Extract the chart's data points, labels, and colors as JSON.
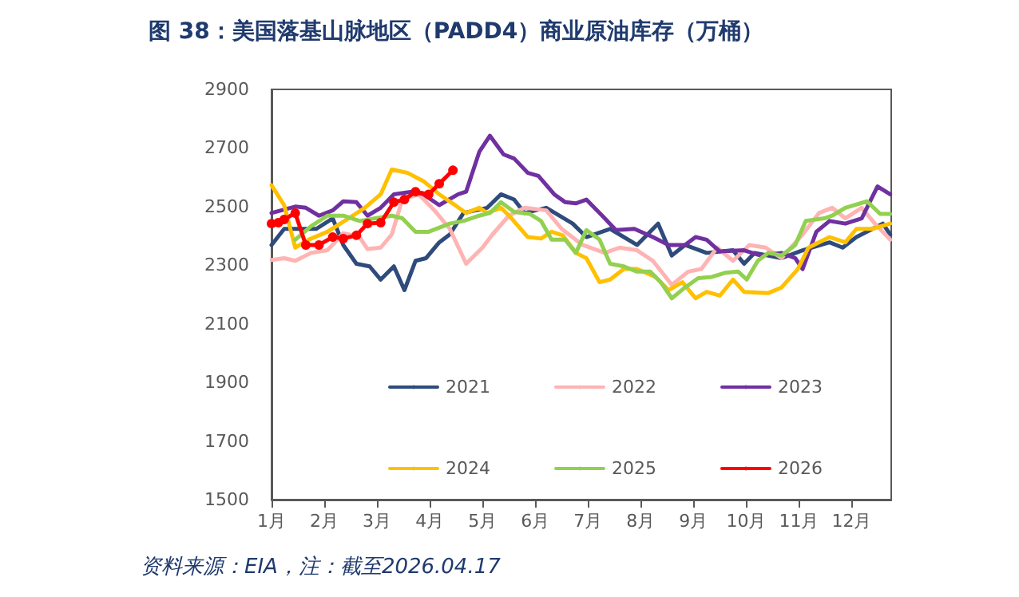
{
  "chart_data": {
    "type": "line",
    "title": "图 38：美国落基山脉地区（PADD4）商业原油库存（万桶）",
    "annotations": [
      "资料来源：EIA，注：截至2026.04.17"
    ],
    "xlim": [
      1,
      12.75
    ],
    "xticks": [
      {
        "value": 1,
        "label": "1月"
      },
      {
        "value": 2,
        "label": "2月"
      },
      {
        "value": 3,
        "label": "3月"
      },
      {
        "value": 4,
        "label": "4月"
      },
      {
        "value": 5,
        "label": "5月"
      },
      {
        "value": 6,
        "label": "6月"
      },
      {
        "value": 7,
        "label": "7月"
      },
      {
        "value": 8,
        "label": "8月"
      },
      {
        "value": 9,
        "label": "9月"
      },
      {
        "value": 10,
        "label": "10月"
      },
      {
        "value": 11,
        "label": "11月"
      },
      {
        "value": 12,
        "label": "12月"
      }
    ],
    "ylim": [
      1500,
      2900
    ],
    "yticks": [
      1500,
      1700,
      1900,
      2100,
      2300,
      2500,
      2700,
      2900
    ],
    "grid": false,
    "legend": "bottom",
    "marker": "none",
    "line_style": "solid",
    "series": [
      {
        "name": "2021",
        "color": "#2f4b7c",
        "x": [
          1,
          1.24,
          1.85,
          2.16,
          2.36,
          2.61,
          2.86,
          3.07,
          3.32,
          3.52,
          3.73,
          3.93,
          4.18,
          4.38,
          4.64,
          5.09,
          5.35,
          5.6,
          5.8,
          6.21,
          6.71,
          6.97,
          7.42,
          7.93,
          8.33,
          8.59,
          8.84,
          9.25,
          9.75,
          9.96,
          10.16,
          10.67,
          11.07,
          11.58,
          11.83,
          12.09,
          12.59,
          12.73
        ],
        "values": [
          2369,
          2424,
          2424,
          2460,
          2369,
          2305,
          2296,
          2251,
          2296,
          2215,
          2315,
          2324,
          2378,
          2405,
          2478,
          2496,
          2542,
          2524,
          2478,
          2496,
          2442,
          2396,
          2424,
          2369,
          2442,
          2333,
          2369,
          2342,
          2351,
          2305,
          2342,
          2324,
          2351,
          2378,
          2360,
          2396,
          2442,
          2405
        ]
      },
      {
        "name": "2022",
        "color": "#ffb3b3",
        "x": [
          1,
          1.24,
          1.45,
          1.75,
          2.06,
          2.36,
          2.67,
          2.82,
          3.07,
          3.28,
          3.48,
          3.79,
          4.09,
          4.38,
          4.69,
          5.0,
          5.19,
          5.5,
          5.8,
          6.21,
          6.5,
          6.9,
          7.32,
          7.6,
          7.93,
          8.23,
          8.59,
          8.9,
          9.15,
          9.45,
          9.75,
          10.06,
          10.37,
          10.67,
          11.07,
          11.38,
          11.63,
          11.88,
          12.19,
          12.44,
          12.73
        ],
        "values": [
          2318,
          2324,
          2315,
          2342,
          2351,
          2409,
          2396,
          2355,
          2360,
          2405,
          2524,
          2542,
          2487,
          2424,
          2305,
          2360,
          2405,
          2469,
          2496,
          2487,
          2424,
          2369,
          2342,
          2360,
          2351,
          2315,
          2233,
          2278,
          2287,
          2360,
          2315,
          2369,
          2360,
          2324,
          2405,
          2478,
          2496,
          2460,
          2496,
          2442,
          2387
        ]
      },
      {
        "name": "2023",
        "color": "#7030a0",
        "x": [
          1,
          1.45,
          1.65,
          1.9,
          2.16,
          2.36,
          2.61,
          2.82,
          3.07,
          3.32,
          3.67,
          3.88,
          4.18,
          4.54,
          4.69,
          4.94,
          5.14,
          5.4,
          5.6,
          5.86,
          6.06,
          6.36,
          6.57,
          6.77,
          6.97,
          7.27,
          7.53,
          7.88,
          8.23,
          8.53,
          8.84,
          9.04,
          9.25,
          9.5,
          9.96,
          10.27,
          10.67,
          10.93,
          11.07,
          11.33,
          11.58,
          11.88,
          12.19,
          12.49,
          12.73
        ],
        "values": [
          2478,
          2500,
          2496,
          2469,
          2487,
          2518,
          2515,
          2469,
          2496,
          2542,
          2551,
          2542,
          2505,
          2542,
          2551,
          2687,
          2742,
          2678,
          2664,
          2615,
          2605,
          2542,
          2515,
          2511,
          2524,
          2469,
          2420,
          2424,
          2396,
          2369,
          2369,
          2396,
          2387,
          2347,
          2351,
          2333,
          2342,
          2324,
          2287,
          2414,
          2451,
          2442,
          2460,
          2569,
          2542
        ]
      },
      {
        "name": "2024",
        "color": "#ffc000",
        "x": [
          1,
          1.24,
          1.45,
          1.7,
          2.06,
          2.46,
          2.77,
          3.07,
          3.28,
          3.58,
          3.88,
          4.18,
          4.48,
          4.69,
          4.94,
          5.09,
          5.35,
          5.55,
          5.86,
          6.11,
          6.31,
          6.52,
          6.77,
          6.97,
          7.22,
          7.42,
          7.68,
          7.93,
          8.28,
          8.53,
          8.79,
          9.04,
          9.25,
          9.5,
          9.75,
          9.96,
          10.42,
          10.67,
          10.98,
          11.18,
          11.58,
          11.88,
          12.09,
          12.39,
          12.73
        ],
        "values": [
          2573,
          2505,
          2360,
          2387,
          2414,
          2460,
          2496,
          2542,
          2627,
          2615,
          2587,
          2542,
          2505,
          2478,
          2496,
          2478,
          2496,
          2460,
          2396,
          2391,
          2414,
          2402,
          2342,
          2324,
          2242,
          2251,
          2287,
          2287,
          2260,
          2215,
          2242,
          2187,
          2209,
          2196,
          2251,
          2209,
          2205,
          2224,
          2287,
          2360,
          2396,
          2378,
          2424,
          2424,
          2442
        ]
      },
      {
        "name": "2025",
        "color": "#92d050",
        "x": [
          1.45,
          1.75,
          2.06,
          2.36,
          2.67,
          2.97,
          3.28,
          3.48,
          3.73,
          3.98,
          4.38,
          4.64,
          4.94,
          5.14,
          5.35,
          5.6,
          5.9,
          6.11,
          6.31,
          6.57,
          6.77,
          6.97,
          7.22,
          7.42,
          7.68,
          7.93,
          8.18,
          8.38,
          8.59,
          8.84,
          9.09,
          9.35,
          9.6,
          9.85,
          10.01,
          10.22,
          10.42,
          10.67,
          10.93,
          11.13,
          11.48,
          11.63,
          11.88,
          12.29,
          12.54,
          12.73
        ],
        "values": [
          2387,
          2433,
          2469,
          2469,
          2451,
          2460,
          2469,
          2460,
          2414,
          2414,
          2442,
          2451,
          2469,
          2478,
          2515,
          2482,
          2475,
          2451,
          2387,
          2387,
          2342,
          2420,
          2387,
          2305,
          2296,
          2278,
          2278,
          2242,
          2187,
          2224,
          2256,
          2260,
          2274,
          2278,
          2251,
          2315,
          2342,
          2333,
          2369,
          2451,
          2460,
          2469,
          2496,
          2518,
          2475,
          2475
        ]
      },
      {
        "name": "2026",
        "color": "#ff0000",
        "marker": "circle",
        "x": [
          1,
          1.13,
          1.24,
          1.45,
          1.65,
          1.9,
          2.16,
          2.36,
          2.61,
          2.82,
          3.07,
          3.32,
          3.52,
          3.73,
          3.98,
          4.18,
          4.44
        ],
        "values": [
          2442,
          2445,
          2456,
          2478,
          2369,
          2369,
          2396,
          2391,
          2402,
          2442,
          2445,
          2515,
          2524,
          2551,
          2542,
          2578,
          2624
        ]
      }
    ]
  }
}
